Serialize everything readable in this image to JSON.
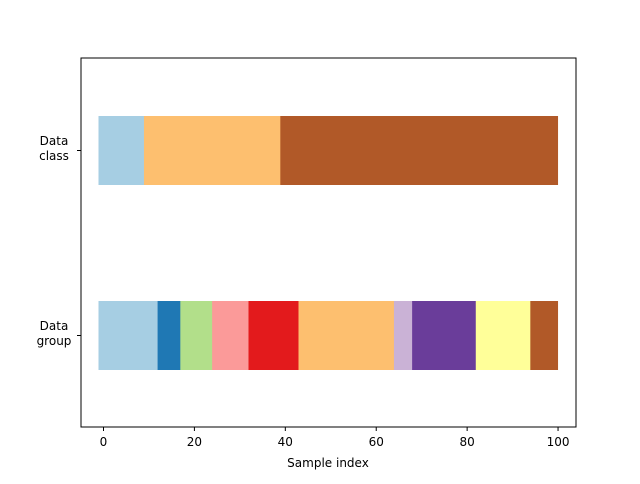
{
  "chart_data": {
    "type": "bar",
    "orientation": "horizontal-segments",
    "xlabel": "Sample index",
    "xlim": [
      -4.95,
      103.95
    ],
    "xticks": [
      0,
      20,
      40,
      60,
      80,
      100
    ],
    "grid": false,
    "rows": [
      {
        "label_lines": [
          "Data",
          "class"
        ],
        "segments": [
          {
            "value": 0,
            "start": 0,
            "end": 9,
            "color": "#a6cee3"
          },
          {
            "value": 1,
            "start": 10,
            "end": 39,
            "color": "#fdbf6f"
          },
          {
            "value": 2,
            "start": 40,
            "end": 99,
            "color": "#b15928"
          }
        ]
      },
      {
        "label_lines": [
          "Data",
          "group"
        ],
        "segments": [
          {
            "value": 0,
            "start": 0,
            "end": 12,
            "color": "#a6cee3"
          },
          {
            "value": 1,
            "start": 13,
            "end": 17,
            "color": "#1f78b4"
          },
          {
            "value": 2,
            "start": 18,
            "end": 24,
            "color": "#b2df8a"
          },
          {
            "value": 3,
            "start": 25,
            "end": 32,
            "color": "#fb9a99"
          },
          {
            "value": 4,
            "start": 33,
            "end": 43,
            "color": "#e31a1c"
          },
          {
            "value": 5,
            "start": 44,
            "end": 64,
            "color": "#fdbf6f"
          },
          {
            "value": 6,
            "start": 65,
            "end": 68,
            "color": "#cab2d6"
          },
          {
            "value": 7,
            "start": 69,
            "end": 82,
            "color": "#6a3d9a"
          },
          {
            "value": 8,
            "start": 83,
            "end": 94,
            "color": "#ffff99"
          },
          {
            "value": 9,
            "start": 95,
            "end": 99,
            "color": "#b15928"
          }
        ]
      }
    ]
  }
}
